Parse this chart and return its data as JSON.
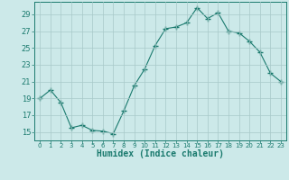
{
  "x": [
    0,
    1,
    2,
    3,
    4,
    5,
    6,
    7,
    8,
    9,
    10,
    11,
    12,
    13,
    14,
    15,
    16,
    17,
    18,
    19,
    20,
    21,
    22,
    23
  ],
  "y": [
    19,
    20,
    18.5,
    15.5,
    15.8,
    15.2,
    15.1,
    14.8,
    17.5,
    20.5,
    22.5,
    25.3,
    27.3,
    27.5,
    28.0,
    29.8,
    28.5,
    29.2,
    27.0,
    26.8,
    25.8,
    24.5,
    22.0,
    21.0
  ],
  "line_color": "#1a7a6e",
  "marker": "+",
  "marker_size": 4,
  "bg_color": "#cce9e9",
  "grid_color": "#a8c8c8",
  "xlabel": "Humidex (Indice chaleur)",
  "ylabel_ticks": [
    15,
    17,
    19,
    21,
    23,
    25,
    27,
    29
  ],
  "ylim": [
    14.0,
    30.5
  ],
  "xlim": [
    -0.5,
    23.5
  ],
  "tick_color": "#1a7a6e",
  "label_fontsize": 7,
  "axis_color": "#1a7a6e",
  "xtick_fontsize": 5,
  "ytick_fontsize": 6
}
